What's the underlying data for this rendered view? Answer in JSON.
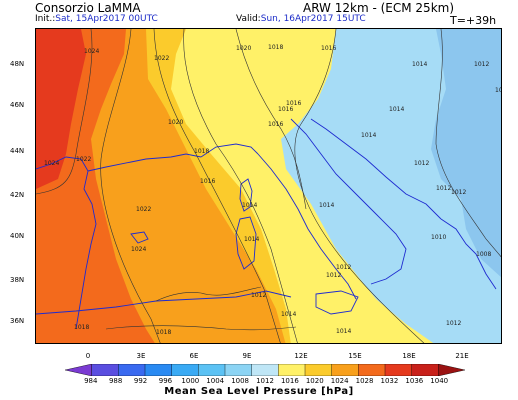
{
  "header": {
    "app_title": "Consorzio LaMMA",
    "model_title": "ARW 12km - (ECM 25km)",
    "init_label": "Init.:",
    "init_value": "Sat, 15Apr2017 00UTC",
    "valid_label": "Valid:",
    "valid_value": "Sun, 16Apr2017 15UTC",
    "step": "T=+39h"
  },
  "axes": {
    "lat_labels": [
      "48N",
      "46N",
      "44N",
      "42N",
      "40N",
      "38N",
      "36N"
    ],
    "lon_labels": [
      "0",
      "3E",
      "6E",
      "9E",
      "12E",
      "15E",
      "18E",
      "21E"
    ]
  },
  "map": {
    "field": "mean sea level pressure",
    "isobar_labels": [
      "1024",
      "1022",
      "1020",
      "1018",
      "1016",
      "1014",
      "1012",
      "1010",
      "1008"
    ],
    "colors": {
      "red": "#e53a1e",
      "orange_red": "#f36a1c",
      "orange": "#f8a01c",
      "yellow_orange": "#fbcb2c",
      "yellow": "#fff168",
      "light_blue": "#a6dcf6",
      "mid_blue": "#8cc6ee",
      "coast": "#1e2bd0"
    }
  },
  "legend": {
    "title": "Mean Sea Level Pressure [hPa]",
    "ticks": [
      "984",
      "988",
      "992",
      "996",
      "1000",
      "1004",
      "1008",
      "1012",
      "1016",
      "1020",
      "1024",
      "1028",
      "1032",
      "1036",
      "1040"
    ],
    "colors": [
      "#7a3ad2",
      "#5a4ee0",
      "#3a6af0",
      "#2a8af2",
      "#3aaaf4",
      "#5cc2f4",
      "#8cd4f4",
      "#bfe6f6",
      "#fff168",
      "#fbcb2c",
      "#f8a01c",
      "#f36a1c",
      "#e53a1e",
      "#c8201a",
      "#9a1212"
    ]
  }
}
